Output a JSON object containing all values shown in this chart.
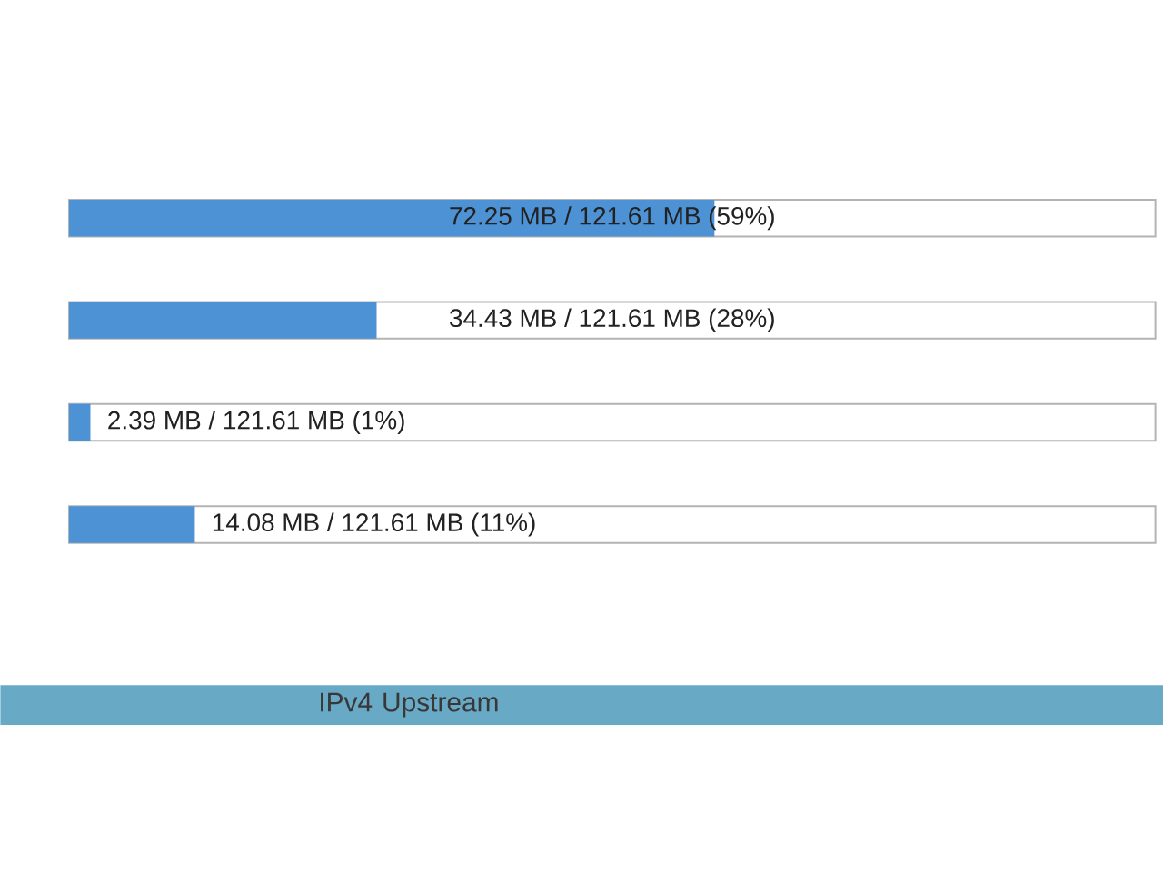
{
  "chart_data": {
    "type": "bar",
    "orientation": "horizontal",
    "categories": [
      null,
      null,
      null,
      null
    ],
    "values": [
      72.25,
      34.43,
      2.39,
      14.08
    ],
    "value_labels": [
      "72.25 MB / 121.61 MB (59%)",
      "34.43 MB / 121.61 MB (28%)",
      "2.39 MB / 121.61 MB (1%)",
      "14.08 MB / 121.61 MB (11%)"
    ],
    "color": "#4d92d4",
    "xlim": [
      0,
      121.61
    ],
    "tick_labels": false,
    "annotations": [
      "IPv4 Upstream"
    ]
  }
}
